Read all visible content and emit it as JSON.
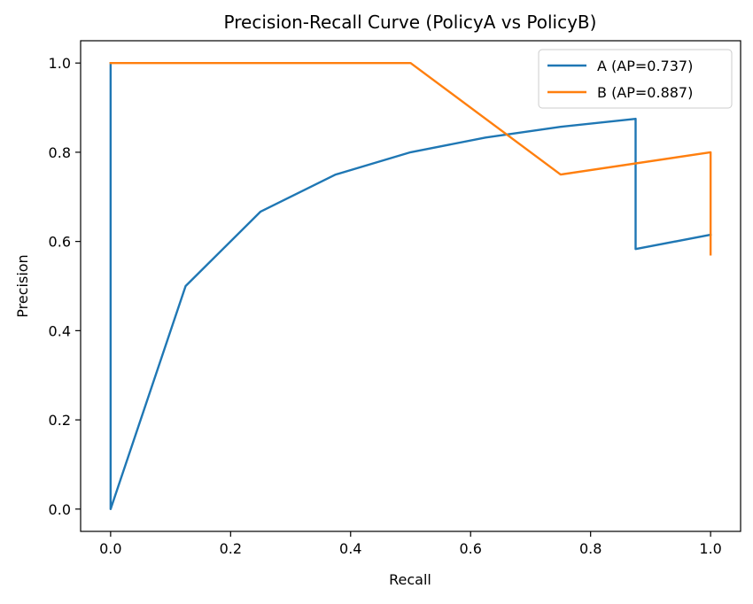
{
  "chart_data": {
    "type": "line",
    "title": "Precision-Recall Curve (PolicyA vs PolicyB)",
    "xlabel": "Recall",
    "ylabel": "Precision",
    "xlim": [
      -0.05,
      1.05
    ],
    "ylim": [
      -0.05,
      1.05
    ],
    "xticks": [
      0.0,
      0.2,
      0.4,
      0.6,
      0.8,
      1.0
    ],
    "xtick_labels": [
      "0.0",
      "0.2",
      "0.4",
      "0.6",
      "0.8",
      "1.0"
    ],
    "yticks": [
      0.0,
      0.2,
      0.4,
      0.6,
      0.8,
      1.0
    ],
    "ytick_labels": [
      "0.0",
      "0.2",
      "0.4",
      "0.6",
      "0.8",
      "1.0"
    ],
    "grid": false,
    "legend_position": "top-right",
    "series": [
      {
        "name": "A (AP=0.737)",
        "color": "#1f77b4",
        "points": [
          [
            0.0,
            1.0
          ],
          [
            0.0,
            0.0
          ],
          [
            0.125,
            0.5
          ],
          [
            0.25,
            0.667
          ],
          [
            0.375,
            0.75
          ],
          [
            0.5,
            0.8
          ],
          [
            0.625,
            0.833
          ],
          [
            0.75,
            0.857
          ],
          [
            0.875,
            0.875
          ],
          [
            0.875,
            0.583
          ],
          [
            1.0,
            0.615
          ]
        ]
      },
      {
        "name": "B (AP=0.887)",
        "color": "#ff7f0e",
        "points": [
          [
            0.0,
            1.0
          ],
          [
            0.5,
            1.0
          ],
          [
            0.75,
            0.75
          ],
          [
            1.0,
            0.8
          ],
          [
            1.0,
            0.571
          ]
        ]
      }
    ]
  }
}
